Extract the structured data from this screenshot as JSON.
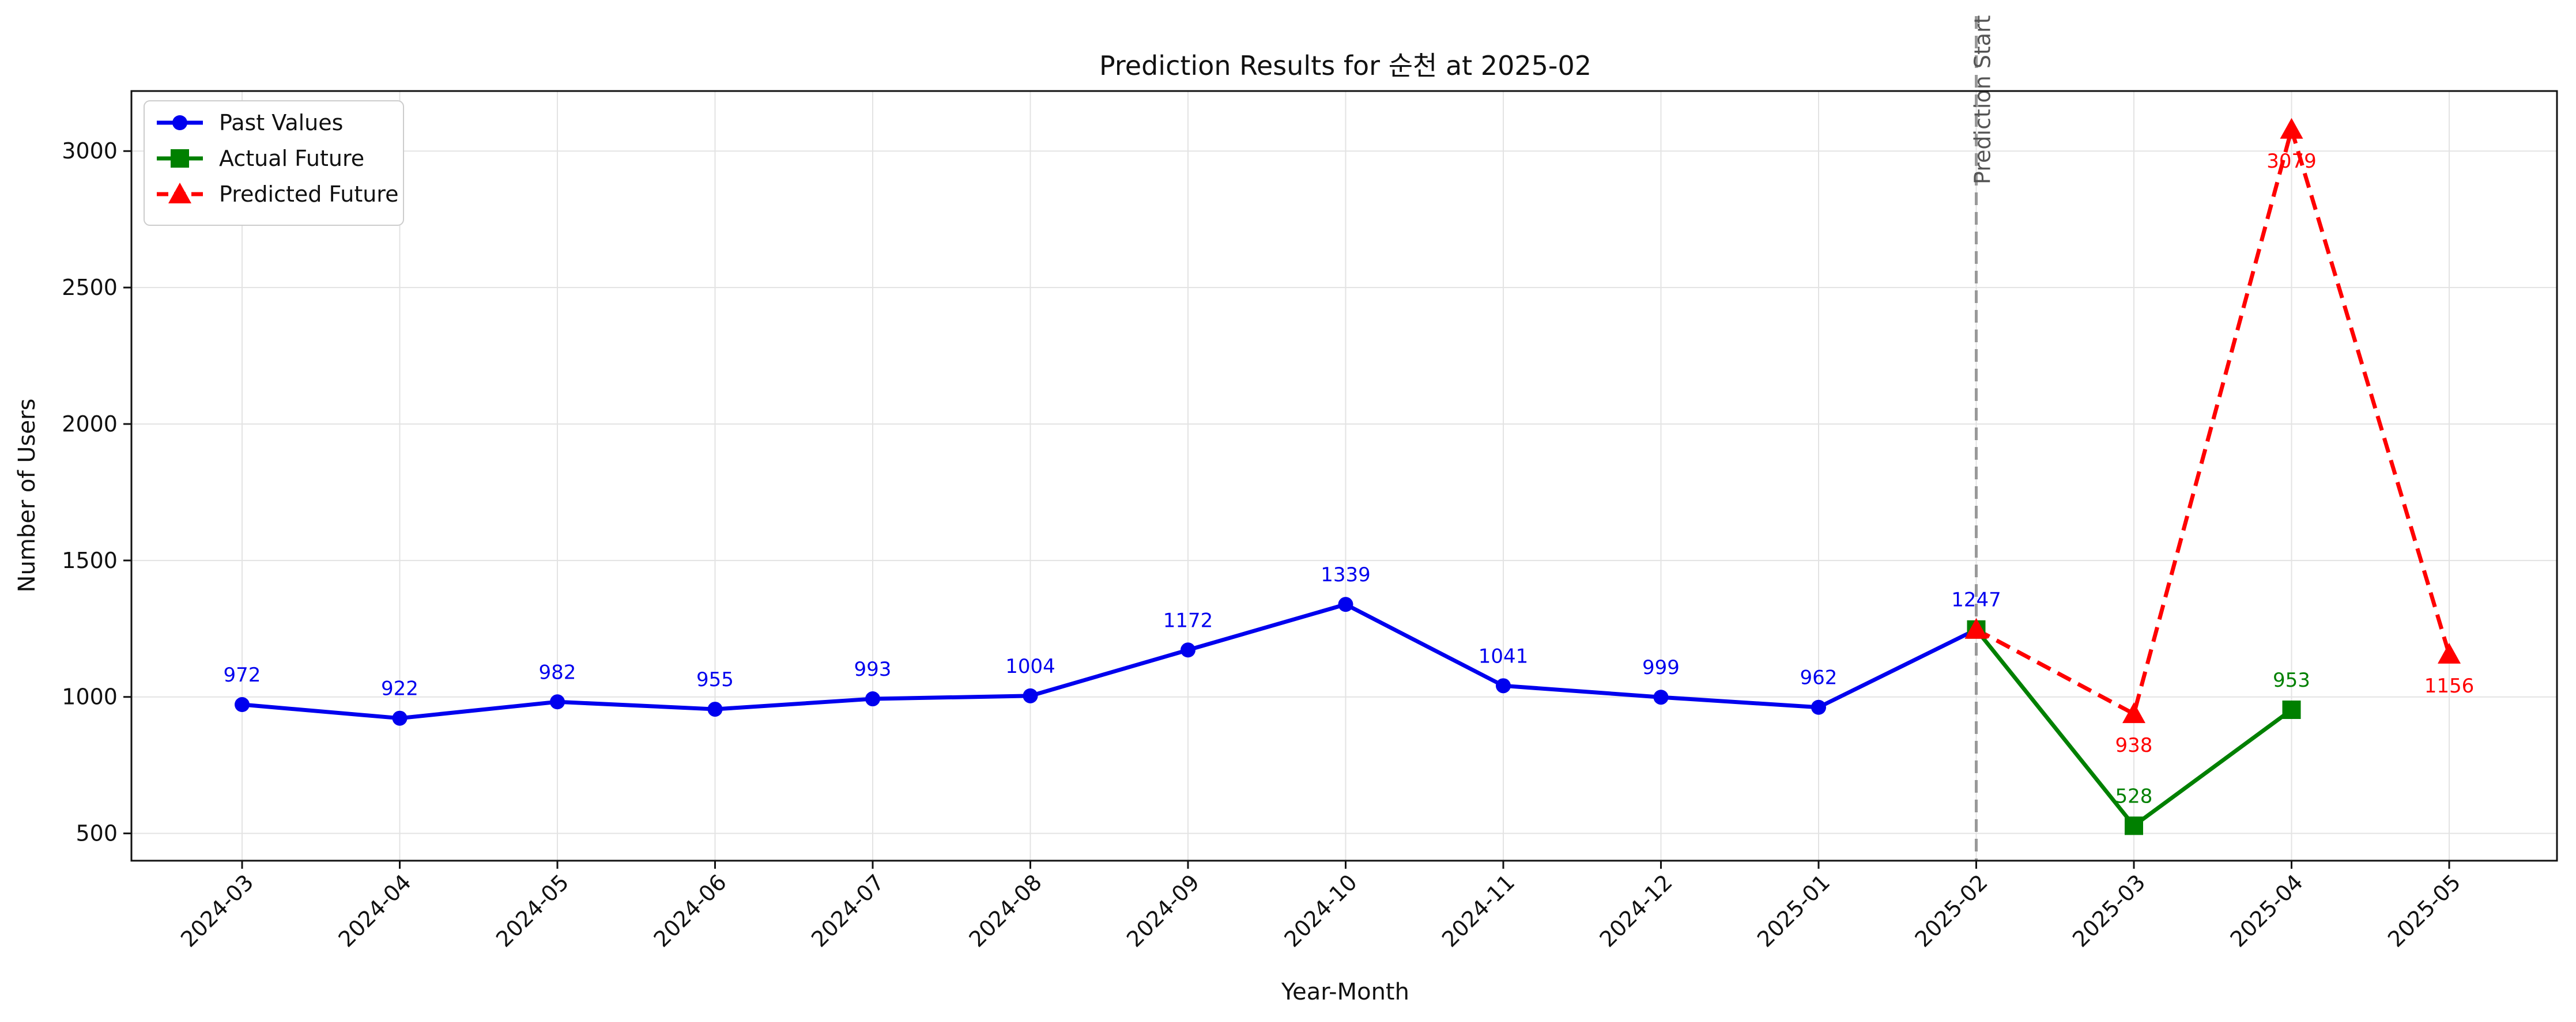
{
  "chart_data": {
    "type": "line",
    "title": "Prediction Results for 순천 at 2025-02",
    "xlabel": "Year-Month",
    "ylabel": "Number of Users",
    "categories": [
      "2024-03",
      "2024-04",
      "2024-05",
      "2024-06",
      "2024-07",
      "2024-08",
      "2024-09",
      "2024-10",
      "2024-11",
      "2024-12",
      "2025-01",
      "2025-02",
      "2025-03",
      "2025-04",
      "2025-05"
    ],
    "yticks": [
      500,
      1000,
      1500,
      2000,
      2500,
      3000
    ],
    "ylim": [
      400,
      3220
    ],
    "grid": true,
    "legend_position": "top-left",
    "vertical_marker": {
      "x": "2025-02",
      "label": "Prediction Start",
      "color": "#999999"
    },
    "series": [
      {
        "name": "Past Values",
        "color": "#0000ee",
        "marker": "circle",
        "style": "solid",
        "points": [
          {
            "x": "2024-03",
            "y": 972
          },
          {
            "x": "2024-04",
            "y": 922
          },
          {
            "x": "2024-05",
            "y": 982
          },
          {
            "x": "2024-06",
            "y": 955
          },
          {
            "x": "2024-07",
            "y": 993
          },
          {
            "x": "2024-08",
            "y": 1004
          },
          {
            "x": "2024-09",
            "y": 1172
          },
          {
            "x": "2024-10",
            "y": 1339
          },
          {
            "x": "2024-11",
            "y": 1041
          },
          {
            "x": "2024-12",
            "y": 999
          },
          {
            "x": "2025-01",
            "y": 962
          },
          {
            "x": "2025-02",
            "y": 1247
          }
        ],
        "labels": [
          {
            "x": "2024-03",
            "text": "972",
            "pos": "above"
          },
          {
            "x": "2024-04",
            "text": "922",
            "pos": "above"
          },
          {
            "x": "2024-05",
            "text": "982",
            "pos": "above"
          },
          {
            "x": "2024-06",
            "text": "955",
            "pos": "above"
          },
          {
            "x": "2024-07",
            "text": "993",
            "pos": "above"
          },
          {
            "x": "2024-08",
            "text": "1004",
            "pos": "above"
          },
          {
            "x": "2024-09",
            "text": "1172",
            "pos": "above"
          },
          {
            "x": "2024-10",
            "text": "1339",
            "pos": "above"
          },
          {
            "x": "2024-11",
            "text": "1041",
            "pos": "above"
          },
          {
            "x": "2024-12",
            "text": "999",
            "pos": "above"
          },
          {
            "x": "2025-01",
            "text": "962",
            "pos": "above"
          },
          {
            "x": "2025-02",
            "text": "1247",
            "pos": "above"
          }
        ]
      },
      {
        "name": "Actual Future",
        "color": "#008000",
        "marker": "square",
        "style": "solid",
        "points": [
          {
            "x": "2025-02",
            "y": 1247
          },
          {
            "x": "2025-03",
            "y": 528
          },
          {
            "x": "2025-04",
            "y": 953
          }
        ],
        "labels": [
          {
            "x": "2025-03",
            "text": "528",
            "pos": "above"
          },
          {
            "x": "2025-04",
            "text": "953",
            "pos": "above"
          }
        ]
      },
      {
        "name": "Predicted Future",
        "color": "#ff0000",
        "marker": "triangle",
        "style": "dashed",
        "points": [
          {
            "x": "2025-02",
            "y": 1247
          },
          {
            "x": "2025-03",
            "y": 938
          },
          {
            "x": "2025-04",
            "y": 3079
          },
          {
            "x": "2025-05",
            "y": 1156
          }
        ],
        "labels": [
          {
            "x": "2025-03",
            "text": "938",
            "pos": "below"
          },
          {
            "x": "2025-04",
            "text": "3079",
            "pos": "below"
          },
          {
            "x": "2025-05",
            "text": "1156",
            "pos": "below"
          }
        ]
      }
    ]
  }
}
